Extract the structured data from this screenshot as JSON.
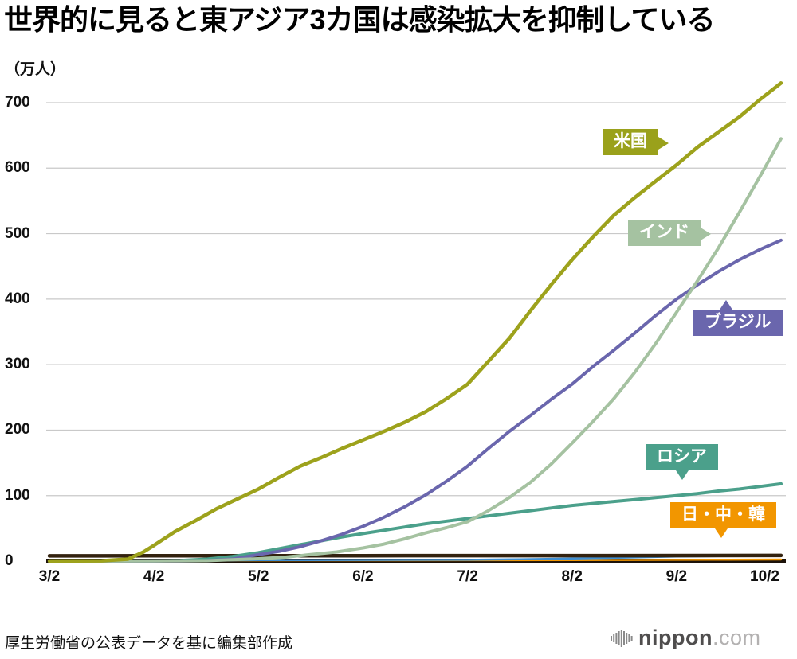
{
  "title": "世界的に見ると東アジア3カ国は感染拡大を抑制している",
  "y_unit_label": "（万人）",
  "source_note": "厚生労働省の公表データを基に編集部作成",
  "logo": {
    "name": "nippon",
    "suffix": ".com"
  },
  "chart_data": {
    "type": "line",
    "xlabel": "",
    "ylabel": "万人",
    "grid": "horizontal",
    "ylim": [
      0,
      740
    ],
    "x_tick_labels": [
      "3/2",
      "4/2",
      "5/2",
      "6/2",
      "7/2",
      "8/2",
      "9/2",
      "10/2"
    ],
    "y_ticks": [
      0,
      100,
      200,
      300,
      400,
      500,
      600,
      700
    ],
    "labels": [
      {
        "text": "米国",
        "color": "#9aa11b"
      },
      {
        "text": "インド",
        "color": "#a5c2a1"
      },
      {
        "text": "ブラジル",
        "color": "#6a66ad"
      },
      {
        "text": "ロシア",
        "color": "#4ba08b"
      },
      {
        "text": "日・中・韓",
        "color": "#f29600"
      }
    ],
    "series": [
      {
        "id": "eastasia-orange",
        "name": "日・中・韓（橙）",
        "color": "#f29600",
        "width": 2.5,
        "points": [
          [
            0,
            0.3
          ],
          [
            0.7,
            0.9
          ],
          [
            1,
            1.0
          ],
          [
            2,
            1.1
          ],
          [
            3,
            1.2
          ],
          [
            4,
            1.3
          ],
          [
            5,
            1.4
          ],
          [
            5.5,
            1.7
          ],
          [
            6,
            2.0
          ],
          [
            6.5,
            2.2
          ],
          [
            7,
            2.4
          ]
        ]
      },
      {
        "id": "eastasia-blue",
        "name": "日・中・韓（青）",
        "color": "#3f8fd2",
        "width": 2.5,
        "points": [
          [
            0,
            0.1
          ],
          [
            1,
            0.2
          ],
          [
            2,
            1.4
          ],
          [
            3,
            1.7
          ],
          [
            4,
            1.9
          ],
          [
            4.5,
            2.8
          ],
          [
            5,
            4.0
          ],
          [
            5.5,
            5.4
          ],
          [
            6,
            6.9
          ],
          [
            6.5,
            7.8
          ],
          [
            7,
            8.5
          ]
        ]
      },
      {
        "id": "eastasia-dark",
        "name": "日・中・韓（黒）",
        "color": "#33220f",
        "width": 4.5,
        "points": [
          [
            0,
            8.0
          ],
          [
            1,
            8.2
          ],
          [
            3,
            8.3
          ],
          [
            5,
            8.4
          ],
          [
            7,
            8.6
          ]
        ]
      },
      {
        "id": "russia",
        "name": "ロシア",
        "color": "#4ba08b",
        "width": 4,
        "points": [
          [
            0,
            0
          ],
          [
            1,
            0.4
          ],
          [
            1.25,
            1
          ],
          [
            1.5,
            3
          ],
          [
            1.75,
            7
          ],
          [
            2,
            13
          ],
          [
            2.2,
            19
          ],
          [
            2.4,
            25
          ],
          [
            2.6,
            31
          ],
          [
            2.8,
            37
          ],
          [
            3,
            42
          ],
          [
            3.2,
            47
          ],
          [
            3.4,
            52
          ],
          [
            3.6,
            57
          ],
          [
            3.8,
            61
          ],
          [
            4,
            65
          ],
          [
            4.2,
            69
          ],
          [
            4.4,
            73
          ],
          [
            4.6,
            77
          ],
          [
            4.8,
            81
          ],
          [
            5,
            85
          ],
          [
            5.2,
            88
          ],
          [
            5.4,
            91
          ],
          [
            5.6,
            94
          ],
          [
            5.8,
            97
          ],
          [
            6,
            100
          ],
          [
            6.2,
            103
          ],
          [
            6.4,
            107
          ],
          [
            6.6,
            110
          ],
          [
            6.8,
            114
          ],
          [
            7,
            118
          ]
        ]
      },
      {
        "id": "brazil",
        "name": "ブラジル",
        "color": "#6a66ad",
        "width": 4,
        "points": [
          [
            0,
            0
          ],
          [
            1.25,
            0.2
          ],
          [
            1.5,
            0.6
          ],
          [
            1.75,
            3
          ],
          [
            2,
            10
          ],
          [
            2.2,
            15
          ],
          [
            2.4,
            22
          ],
          [
            2.6,
            31
          ],
          [
            2.8,
            41
          ],
          [
            3,
            53
          ],
          [
            3.2,
            67
          ],
          [
            3.4,
            83
          ],
          [
            3.6,
            101
          ],
          [
            3.8,
            122
          ],
          [
            4,
            145
          ],
          [
            4.2,
            172
          ],
          [
            4.4,
            198
          ],
          [
            4.6,
            222
          ],
          [
            4.8,
            247
          ],
          [
            5,
            270
          ],
          [
            5.2,
            297
          ],
          [
            5.4,
            322
          ],
          [
            5.6,
            348
          ],
          [
            5.8,
            375
          ],
          [
            6,
            400
          ],
          [
            6.2,
            422
          ],
          [
            6.4,
            442
          ],
          [
            6.6,
            460
          ],
          [
            6.8,
            476
          ],
          [
            7,
            490
          ]
        ]
      },
      {
        "id": "india",
        "name": "インド",
        "color": "#a5c2a1",
        "width": 4,
        "points": [
          [
            0,
            0
          ],
          [
            1,
            0.2
          ],
          [
            1.5,
            0.6
          ],
          [
            2,
            3.7
          ],
          [
            2.25,
            6
          ],
          [
            2.5,
            10
          ],
          [
            2.75,
            14
          ],
          [
            3,
            20
          ],
          [
            3.2,
            26
          ],
          [
            3.4,
            34
          ],
          [
            3.6,
            43
          ],
          [
            3.8,
            51
          ],
          [
            4,
            60
          ],
          [
            4.2,
            77
          ],
          [
            4.4,
            97
          ],
          [
            4.6,
            120
          ],
          [
            4.8,
            148
          ],
          [
            5,
            180
          ],
          [
            5.2,
            213
          ],
          [
            5.4,
            248
          ],
          [
            5.6,
            288
          ],
          [
            5.8,
            332
          ],
          [
            6,
            380
          ],
          [
            6.2,
            428
          ],
          [
            6.4,
            478
          ],
          [
            6.6,
            532
          ],
          [
            6.8,
            588
          ],
          [
            7,
            645
          ]
        ]
      },
      {
        "id": "usa",
        "name": "米国",
        "color": "#9da21c",
        "width": 4.5,
        "points": [
          [
            0,
            0.1
          ],
          [
            0.5,
            0.5
          ],
          [
            0.75,
            3
          ],
          [
            0.9,
            14
          ],
          [
            1,
            24
          ],
          [
            1.2,
            45
          ],
          [
            1.4,
            62
          ],
          [
            1.6,
            80
          ],
          [
            1.8,
            95
          ],
          [
            2,
            110
          ],
          [
            2.2,
            128
          ],
          [
            2.4,
            145
          ],
          [
            2.6,
            158
          ],
          [
            2.8,
            172
          ],
          [
            3,
            185
          ],
          [
            3.2,
            198
          ],
          [
            3.4,
            212
          ],
          [
            3.6,
            228
          ],
          [
            3.8,
            248
          ],
          [
            4,
            270
          ],
          [
            4.2,
            305
          ],
          [
            4.4,
            340
          ],
          [
            4.6,
            382
          ],
          [
            4.8,
            422
          ],
          [
            5,
            460
          ],
          [
            5.2,
            495
          ],
          [
            5.4,
            528
          ],
          [
            5.6,
            555
          ],
          [
            5.8,
            580
          ],
          [
            6,
            605
          ],
          [
            6.2,
            632
          ],
          [
            6.4,
            655
          ],
          [
            6.6,
            678
          ],
          [
            6.8,
            705
          ],
          [
            7,
            730
          ]
        ]
      }
    ]
  }
}
